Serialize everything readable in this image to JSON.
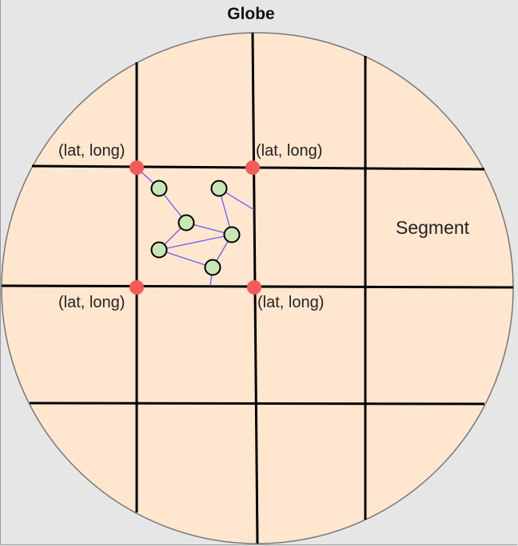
{
  "title": "Globe",
  "segment_label": "Segment",
  "corner_labels": [
    "(lat, long)",
    "(lat, long)",
    "(lat, long)",
    "(lat, long)"
  ],
  "colors": {
    "globe_fill": "#ffe6cf",
    "globe_stroke": "#777777",
    "grid_line": "#000000",
    "corner_node": "#f45a5a",
    "data_node_fill": "#c8e6b4",
    "edge": "#6a5cf2",
    "background": "#e6e6e6"
  }
}
